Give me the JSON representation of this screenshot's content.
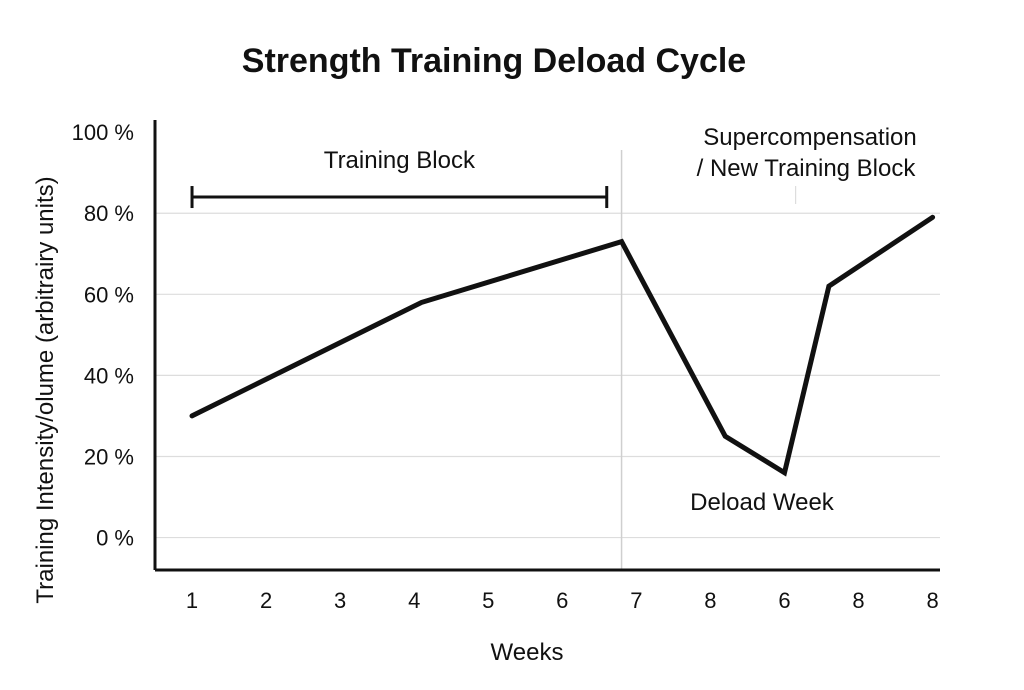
{
  "chart_data": {
    "type": "line",
    "title": "Strength Training Deload Cycle",
    "xlabel": "Weeks",
    "ylabel": "Training Intensity/olume (arbitrairy units)",
    "categories": [
      "1",
      "2",
      "3",
      "4",
      "5",
      "6",
      "7",
      "8",
      "6",
      "8",
      "8"
    ],
    "x_positions": [
      1,
      2,
      3,
      4,
      5,
      6,
      7,
      8,
      9,
      10,
      11
    ],
    "x_range": [
      0.5,
      11.1
    ],
    "ylim": [
      -8,
      103
    ],
    "y_ticks": [
      0,
      20,
      40,
      60,
      80,
      100
    ],
    "y_tick_labels": [
      "0 %",
      "20 %",
      "40 %",
      "60 %",
      "80 %",
      "100 %"
    ],
    "grid": "horizontal",
    "series": [
      {
        "name": "Training Intensity/Volume",
        "color": "#111111",
        "points": [
          {
            "x": 1,
            "y": 30
          },
          {
            "x": 4.1,
            "y": 58
          },
          {
            "x": 6.8,
            "y": 73
          },
          {
            "x": 8.2,
            "y": 25
          },
          {
            "x": 9.0,
            "y": 16
          },
          {
            "x": 9.6,
            "y": 62
          },
          {
            "x": 11,
            "y": 79
          }
        ]
      }
    ],
    "phase_divider_x": 6.8,
    "annotations": {
      "training_block": {
        "label": "Training Block",
        "x_start": 1,
        "x_end": 6.6,
        "y": 84
      },
      "supercompensation": {
        "line1": "Supercompensation",
        "line2": "/ New Training Block"
      },
      "deload": {
        "label": "Deload Week"
      }
    }
  },
  "colors": {
    "line": "#111111",
    "grid": "#dddddd",
    "axis": "#111111",
    "background": "#ffffff"
  }
}
